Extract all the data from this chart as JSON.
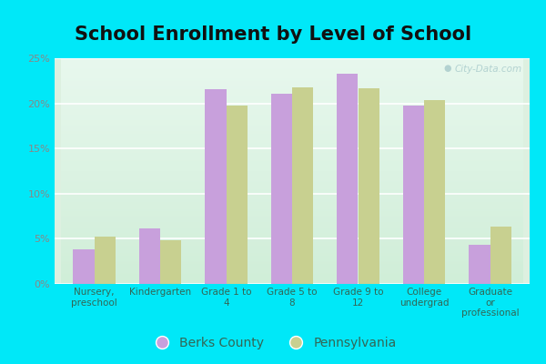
{
  "title": "School Enrollment by Level of School",
  "categories": [
    "Nursery,\npreschool",
    "Kindergarten",
    "Grade 1 to\n4",
    "Grade 5 to\n8",
    "Grade 9 to\n12",
    "College\nundergrad",
    "Graduate\nor\nprofessional"
  ],
  "berks_county": [
    3.8,
    6.1,
    21.6,
    21.1,
    23.3,
    19.8,
    4.3
  ],
  "pennsylvania": [
    5.2,
    4.8,
    19.8,
    21.8,
    21.7,
    20.4,
    6.4
  ],
  "berks_color": "#c8a0dc",
  "pa_color": "#c8d090",
  "background_outer": "#00e8f8",
  "background_inner": "#ddf0e0",
  "grid_color": "#ffffff",
  "tick_color": "#888888",
  "label_color": "#336655",
  "ylim": [
    0,
    25
  ],
  "yticks": [
    0,
    5,
    10,
    15,
    20,
    25
  ],
  "legend_labels": [
    "Berks County",
    "Pennsylvania"
  ],
  "title_fontsize": 15,
  "title_color": "#111111",
  "watermark": "City-Data.com",
  "bar_width": 0.32
}
